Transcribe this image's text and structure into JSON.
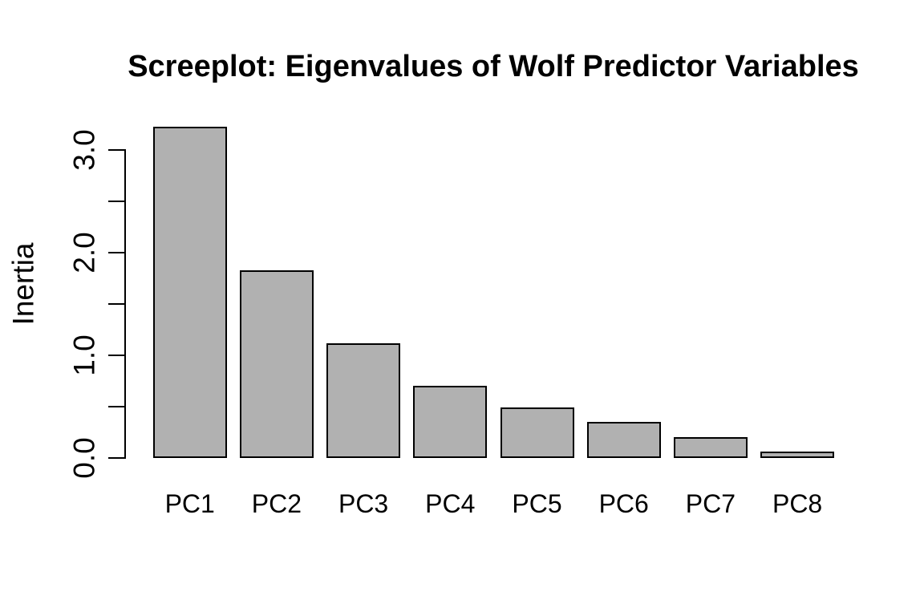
{
  "title": "Screeplot: Eigenvalues of Wolf Predictor Variables",
  "chart_data": {
    "type": "bar",
    "title": "Screeplot: Eigenvalues of Wolf Predictor Variables",
    "xlabel": "",
    "ylabel": "Inertia",
    "categories": [
      "PC1",
      "PC2",
      "PC3",
      "PC4",
      "PC5",
      "PC6",
      "PC7",
      "PC8"
    ],
    "values": [
      3.23,
      1.83,
      1.12,
      0.7,
      0.49,
      0.35,
      0.2,
      0.06
    ],
    "ylim": [
      0,
      3.23
    ],
    "y_ticks": [
      0,
      0.5,
      1,
      1.5,
      2,
      2.5,
      3
    ],
    "y_tick_labels": [
      "0.0",
      "1.0",
      "2.0",
      "3.0"
    ],
    "y_tick_label_values": [
      0,
      1,
      2,
      3
    ],
    "grid": false,
    "legend": "none",
    "bar_fill": "#b1b1b1",
    "bar_border": "#000000",
    "background": "#ffffff",
    "axis_color": "#000000"
  }
}
